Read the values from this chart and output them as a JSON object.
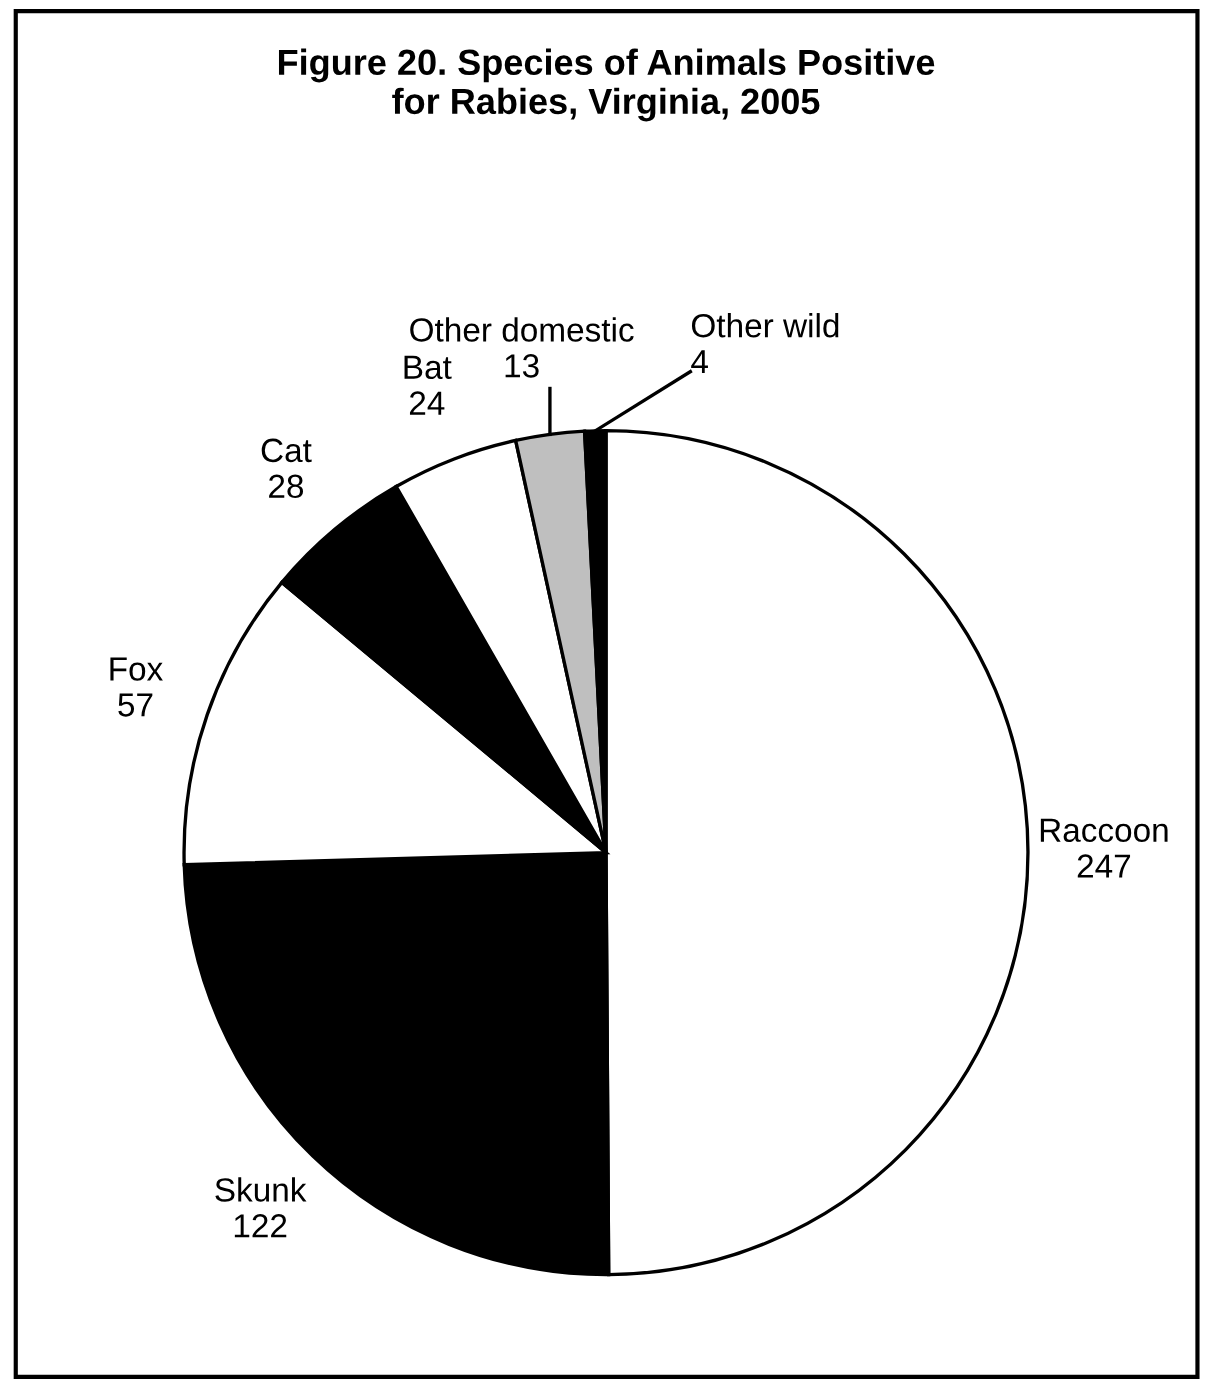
{
  "chart_data": {
    "type": "pie",
    "title": "Figure 20. Species of Animals Positive\nfor Rabies, Virginia, 2005",
    "categories": [
      "Raccoon",
      "Skunk",
      "Fox",
      "Cat",
      "Bat",
      "Other domestic",
      "Other wild"
    ],
    "values": [
      247,
      122,
      57,
      28,
      24,
      13,
      4
    ],
    "colors": [
      "#ffffff",
      "#000000",
      "#ffffff",
      "#000000",
      "#ffffff",
      "#bfbfbf",
      "#000000"
    ],
    "data_labels": true
  }
}
